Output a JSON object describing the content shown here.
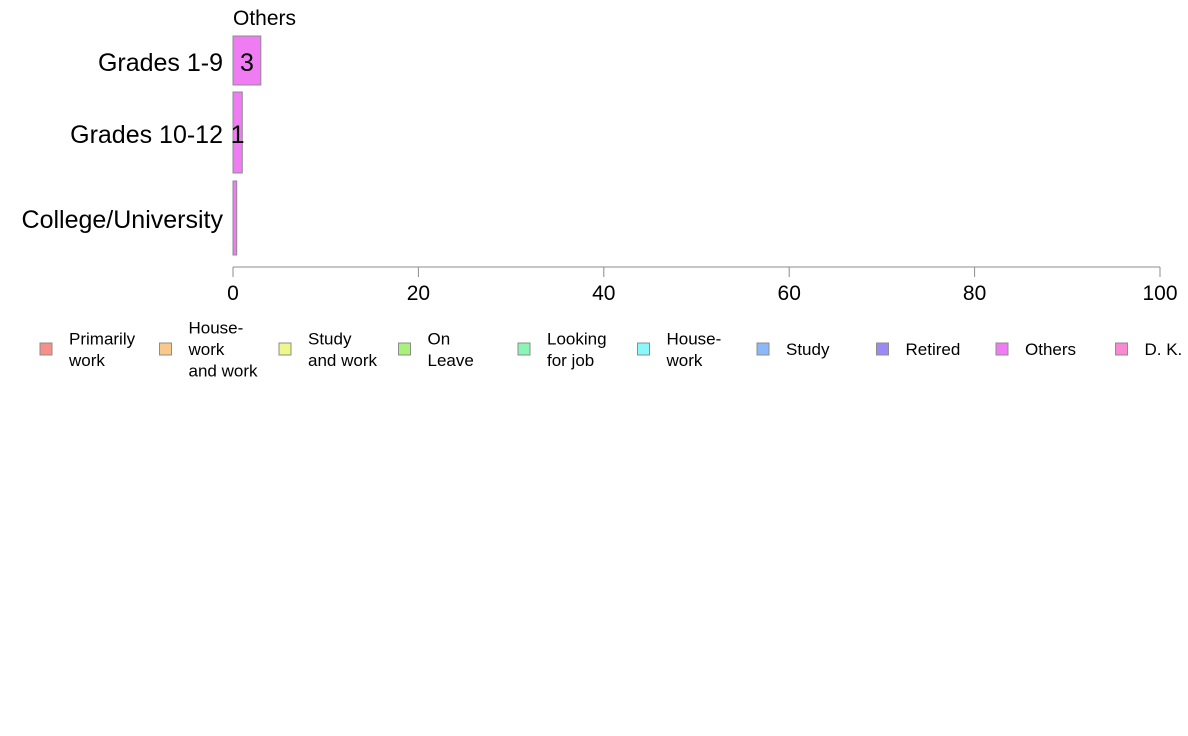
{
  "chart_data": {
    "type": "bar",
    "orientation": "horizontal",
    "panel_title": "Others",
    "categories": [
      "Grades 1-9",
      "Grades 10-12",
      "College/University"
    ],
    "values": [
      3,
      1,
      0.4
    ],
    "value_labels": [
      "3",
      "1",
      ""
    ],
    "bar_color": "#f07cf4",
    "xlim": [
      0,
      100
    ],
    "xticks": [
      0,
      20,
      40,
      60,
      80,
      100
    ],
    "grid": false,
    "legend_position": "bottom",
    "legend": [
      {
        "label": [
          "Primarily",
          "work"
        ],
        "color": "#f78f8a"
      },
      {
        "label": [
          "House-",
          "work",
          "and work"
        ],
        "color": "#f8c98a"
      },
      {
        "label": [
          "Study",
          "and work"
        ],
        "color": "#eef88a"
      },
      {
        "label": [
          "On",
          "Leave"
        ],
        "color": "#a9f27a"
      },
      {
        "label": [
          "Looking",
          "for job"
        ],
        "color": "#8af5b4"
      },
      {
        "label": [
          "House-",
          "work"
        ],
        "color": "#8af8f8"
      },
      {
        "label": [
          "Study"
        ],
        "color": "#8ab8f8"
      },
      {
        "label": [
          "Retired"
        ],
        "color": "#9b8af5"
      },
      {
        "label": [
          "Others"
        ],
        "color": "#f07cf4"
      },
      {
        "label": [
          "D. K."
        ],
        "color": "#f78ad0"
      }
    ]
  }
}
